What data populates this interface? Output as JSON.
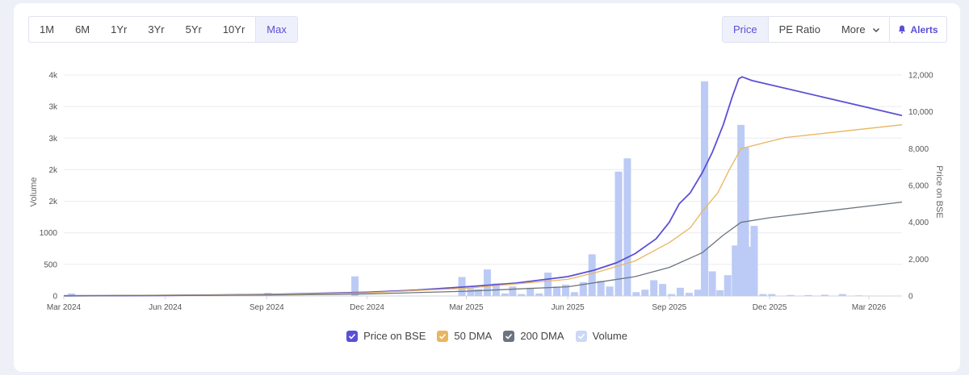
{
  "ranges": {
    "items": [
      "1M",
      "6M",
      "1Yr",
      "3Yr",
      "5Yr",
      "10Yr",
      "Max"
    ],
    "active": "Max"
  },
  "metrics": {
    "price_label": "Price",
    "pe_label": "PE Ratio",
    "more_label": "More"
  },
  "alerts_label": "Alerts",
  "colors": {
    "accent": "#5b4fd6",
    "price": "#5b4fd6",
    "dma50": "#e9b55f",
    "dma200": "#6b7580",
    "volume": "#bccbf5"
  },
  "legend": [
    {
      "label": "Price on BSE",
      "color": "#5b4fd6"
    },
    {
      "label": "50 DMA",
      "color": "#e9b55f"
    },
    {
      "label": "200 DMA",
      "color": "#6b7580"
    },
    {
      "label": "Volume",
      "color": "#cdd8f7"
    }
  ],
  "chart_data": {
    "type": "line",
    "xlabel": "",
    "ylabel_left": "Volume",
    "ylabel_right": "Price on BSE",
    "y_left_ticks": [
      "0",
      "500",
      "1000",
      "2k",
      "2k",
      "3k",
      "3k",
      "4k"
    ],
    "y_left_range": [
      0,
      3500
    ],
    "y_right_ticks": [
      "0",
      "2,000",
      "4,000",
      "6,000",
      "8,000",
      "10,000",
      "12,000"
    ],
    "y_right_range": [
      0,
      12000
    ],
    "x_range": [
      "2024-03-01",
      "2026-03-31"
    ],
    "x_ticks": [
      {
        "date": "2024-03-01",
        "label": "Mar 2024"
      },
      {
        "date": "2024-06-01",
        "label": "Jun 2024"
      },
      {
        "date": "2024-09-01",
        "label": "Sep 2024"
      },
      {
        "date": "2024-12-01",
        "label": "Dec 2024"
      },
      {
        "date": "2025-03-01",
        "label": "Mar 2025"
      },
      {
        "date": "2025-06-01",
        "label": "Jun 2025"
      },
      {
        "date": "2025-09-01",
        "label": "Sep 2025"
      },
      {
        "date": "2025-12-01",
        "label": "Dec 2025"
      },
      {
        "date": "2026-03-01",
        "label": "Mar 2026"
      }
    ],
    "grid": true,
    "legend_position": "bottom",
    "series": [
      {
        "name": "Price on BSE",
        "axis": "right",
        "points": [
          [
            "2024-03-01",
            10
          ],
          [
            "2024-06-01",
            30
          ],
          [
            "2024-09-01",
            80
          ],
          [
            "2024-12-01",
            200
          ],
          [
            "2025-01-15",
            320
          ],
          [
            "2025-03-01",
            500
          ],
          [
            "2025-04-15",
            700
          ],
          [
            "2025-06-01",
            1050
          ],
          [
            "2025-06-25",
            1400
          ],
          [
            "2025-07-15",
            1800
          ],
          [
            "2025-08-01",
            2300
          ],
          [
            "2025-08-20",
            3100
          ],
          [
            "2025-09-01",
            4000
          ],
          [
            "2025-09-10",
            5000
          ],
          [
            "2025-09-20",
            5600
          ],
          [
            "2025-10-01",
            6700
          ],
          [
            "2025-10-10",
            7800
          ],
          [
            "2025-10-20",
            9300
          ],
          [
            "2025-10-28",
            10800
          ],
          [
            "2025-11-03",
            11800
          ],
          [
            "2025-11-06",
            11900
          ],
          [
            "2025-11-15",
            11700
          ],
          [
            "2026-03-31",
            9800
          ]
        ]
      },
      {
        "name": "50 DMA",
        "axis": "right",
        "points": [
          [
            "2024-03-01",
            10
          ],
          [
            "2024-09-01",
            70
          ],
          [
            "2024-12-01",
            170
          ],
          [
            "2025-03-01",
            420
          ],
          [
            "2025-06-01",
            900
          ],
          [
            "2025-07-01",
            1350
          ],
          [
            "2025-08-01",
            1900
          ],
          [
            "2025-09-01",
            2900
          ],
          [
            "2025-09-20",
            3700
          ],
          [
            "2025-10-01",
            4600
          ],
          [
            "2025-10-15",
            5600
          ],
          [
            "2025-10-25",
            6800
          ],
          [
            "2025-11-05",
            8000
          ],
          [
            "2025-12-15",
            8600
          ],
          [
            "2026-03-31",
            9300
          ]
        ]
      },
      {
        "name": "200 DMA",
        "axis": "right",
        "points": [
          [
            "2024-03-01",
            8
          ],
          [
            "2024-09-01",
            50
          ],
          [
            "2024-12-01",
            110
          ],
          [
            "2025-03-01",
            260
          ],
          [
            "2025-06-01",
            500
          ],
          [
            "2025-08-01",
            1050
          ],
          [
            "2025-09-01",
            1550
          ],
          [
            "2025-10-01",
            2350
          ],
          [
            "2025-10-20",
            3300
          ],
          [
            "2025-11-05",
            4000
          ],
          [
            "2025-12-01",
            4250
          ],
          [
            "2026-03-31",
            5100
          ]
        ]
      }
    ],
    "volume": {
      "name": "Volume",
      "axis": "left",
      "bars": [
        [
          "2024-03-08",
          40
        ],
        [
          "2024-09-02",
          50
        ],
        [
          "2024-11-20",
          310
        ],
        [
          "2025-02-25",
          300
        ],
        [
          "2025-03-05",
          120
        ],
        [
          "2025-03-12",
          110
        ],
        [
          "2025-03-20",
          420
        ],
        [
          "2025-03-28",
          200
        ],
        [
          "2025-04-05",
          40
        ],
        [
          "2025-04-12",
          150
        ],
        [
          "2025-04-20",
          30
        ],
        [
          "2025-04-28",
          130
        ],
        [
          "2025-05-06",
          40
        ],
        [
          "2025-05-14",
          370
        ],
        [
          "2025-05-22",
          150
        ],
        [
          "2025-05-30",
          180
        ],
        [
          "2025-06-07",
          60
        ],
        [
          "2025-06-15",
          220
        ],
        [
          "2025-06-23",
          660
        ],
        [
          "2025-07-01",
          240
        ],
        [
          "2025-07-09",
          150
        ],
        [
          "2025-07-17",
          1970
        ],
        [
          "2025-07-25",
          2180
        ],
        [
          "2025-08-02",
          60
        ],
        [
          "2025-08-10",
          100
        ],
        [
          "2025-08-18",
          250
        ],
        [
          "2025-08-26",
          190
        ],
        [
          "2025-09-03",
          30
        ],
        [
          "2025-09-11",
          130
        ],
        [
          "2025-09-19",
          50
        ],
        [
          "2025-09-27",
          100
        ],
        [
          "2025-10-03",
          3400
        ],
        [
          "2025-10-10",
          390
        ],
        [
          "2025-10-17",
          90
        ],
        [
          "2025-10-24",
          330
        ],
        [
          "2025-10-31",
          800
        ],
        [
          "2025-11-05",
          2710
        ],
        [
          "2025-11-09",
          2350
        ],
        [
          "2025-11-13",
          780
        ],
        [
          "2025-11-17",
          1110
        ],
        [
          "2025-11-25",
          30
        ],
        [
          "2025-12-03",
          30
        ],
        [
          "2025-12-20",
          15
        ],
        [
          "2026-01-05",
          15
        ],
        [
          "2026-01-20",
          20
        ],
        [
          "2026-02-05",
          30
        ],
        [
          "2026-02-20",
          10
        ]
      ]
    }
  }
}
